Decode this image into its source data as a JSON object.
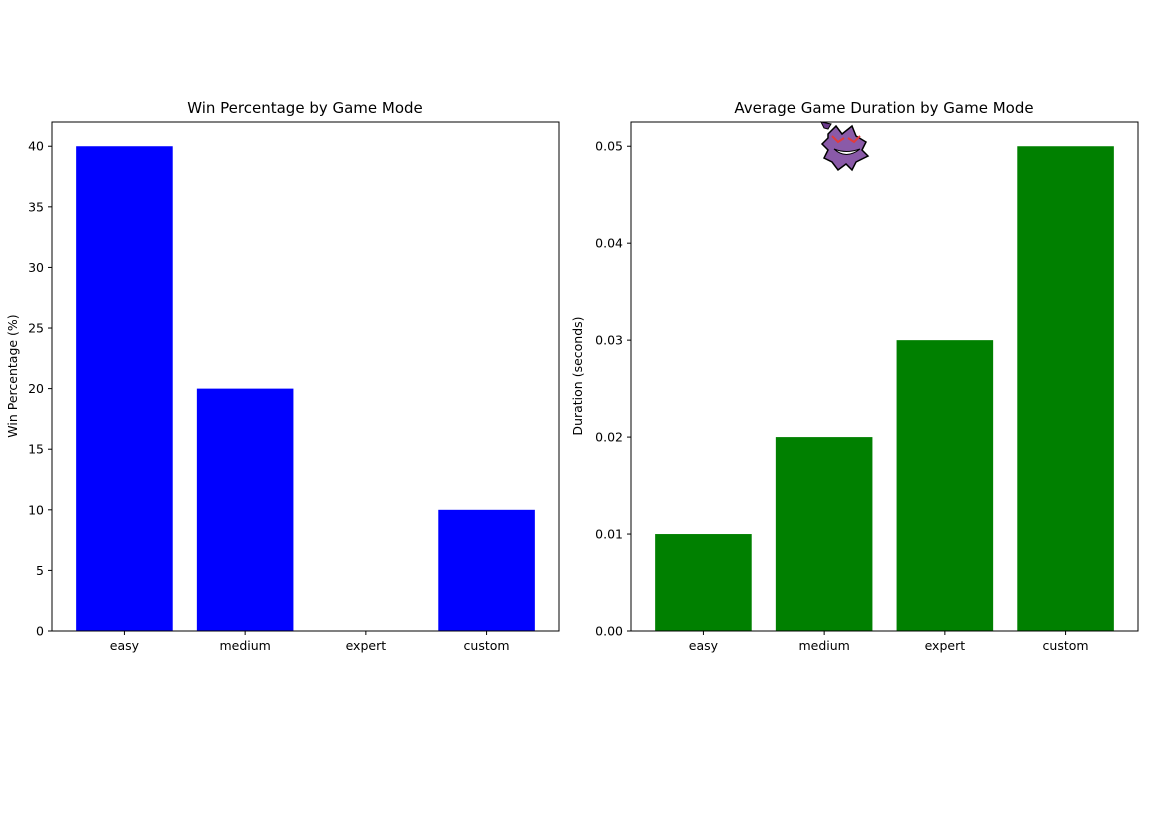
{
  "chart_data": [
    {
      "type": "bar",
      "title": "Win Percentage by Game Mode",
      "xlabel": "",
      "ylabel": "Win Percentage (%)",
      "categories": [
        "easy",
        "medium",
        "expert",
        "custom"
      ],
      "values": [
        40,
        20,
        0,
        10
      ],
      "ylim": [
        0,
        42
      ],
      "yticks": [
        0,
        5,
        10,
        15,
        20,
        25,
        30,
        35,
        40
      ],
      "ytick_labels": [
        "0",
        "5",
        "10",
        "15",
        "20",
        "25",
        "30",
        "35",
        "40"
      ],
      "color": "#0000ff",
      "grid": false
    },
    {
      "type": "bar",
      "title": "Average Game Duration by Game Mode",
      "xlabel": "",
      "ylabel": "Duration (seconds)",
      "categories": [
        "easy",
        "medium",
        "expert",
        "custom"
      ],
      "values": [
        0.01,
        0.02,
        0.03,
        0.05
      ],
      "ylim": [
        0,
        0.0525
      ],
      "yticks": [
        0,
        0.01,
        0.02,
        0.03,
        0.04,
        0.05
      ],
      "ytick_labels": [
        "0.00",
        "0.01",
        "0.02",
        "0.03",
        "0.04",
        "0.05"
      ],
      "color": "#008000",
      "grid": false
    }
  ],
  "decoration": {
    "icon": "ghost-sprite-icon"
  }
}
